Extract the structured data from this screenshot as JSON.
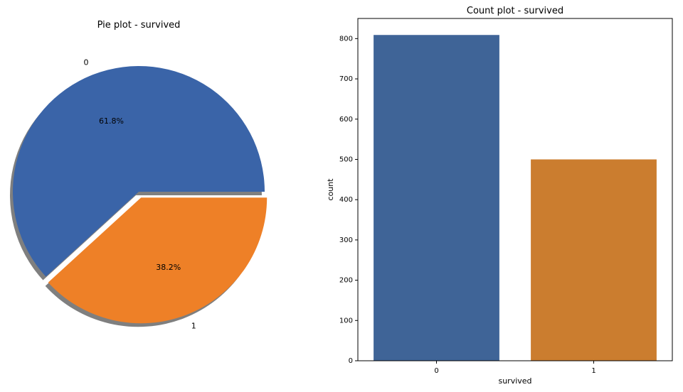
{
  "chart_data": [
    {
      "type": "pie",
      "title": "Pie plot - survived",
      "labels": [
        "0",
        "1"
      ],
      "values": [
        61.8,
        38.2
      ],
      "value_labels": [
        "61.8%",
        "38.2%"
      ],
      "explode": [
        0,
        0.05
      ],
      "shadow": true,
      "colors": [
        "#3a64a8",
        "#ee8027"
      ]
    },
    {
      "type": "bar",
      "title": "Count plot - survived",
      "categories": [
        "0",
        "1"
      ],
      "values": [
        809,
        500
      ],
      "xlabel": "survived",
      "ylabel": "count",
      "ylim": [
        0,
        850
      ],
      "yticks": [
        0,
        100,
        200,
        300,
        400,
        500,
        600,
        700,
        800
      ],
      "grid": false,
      "colors": [
        "#3f6497",
        "#cb7d2f"
      ]
    }
  ]
}
